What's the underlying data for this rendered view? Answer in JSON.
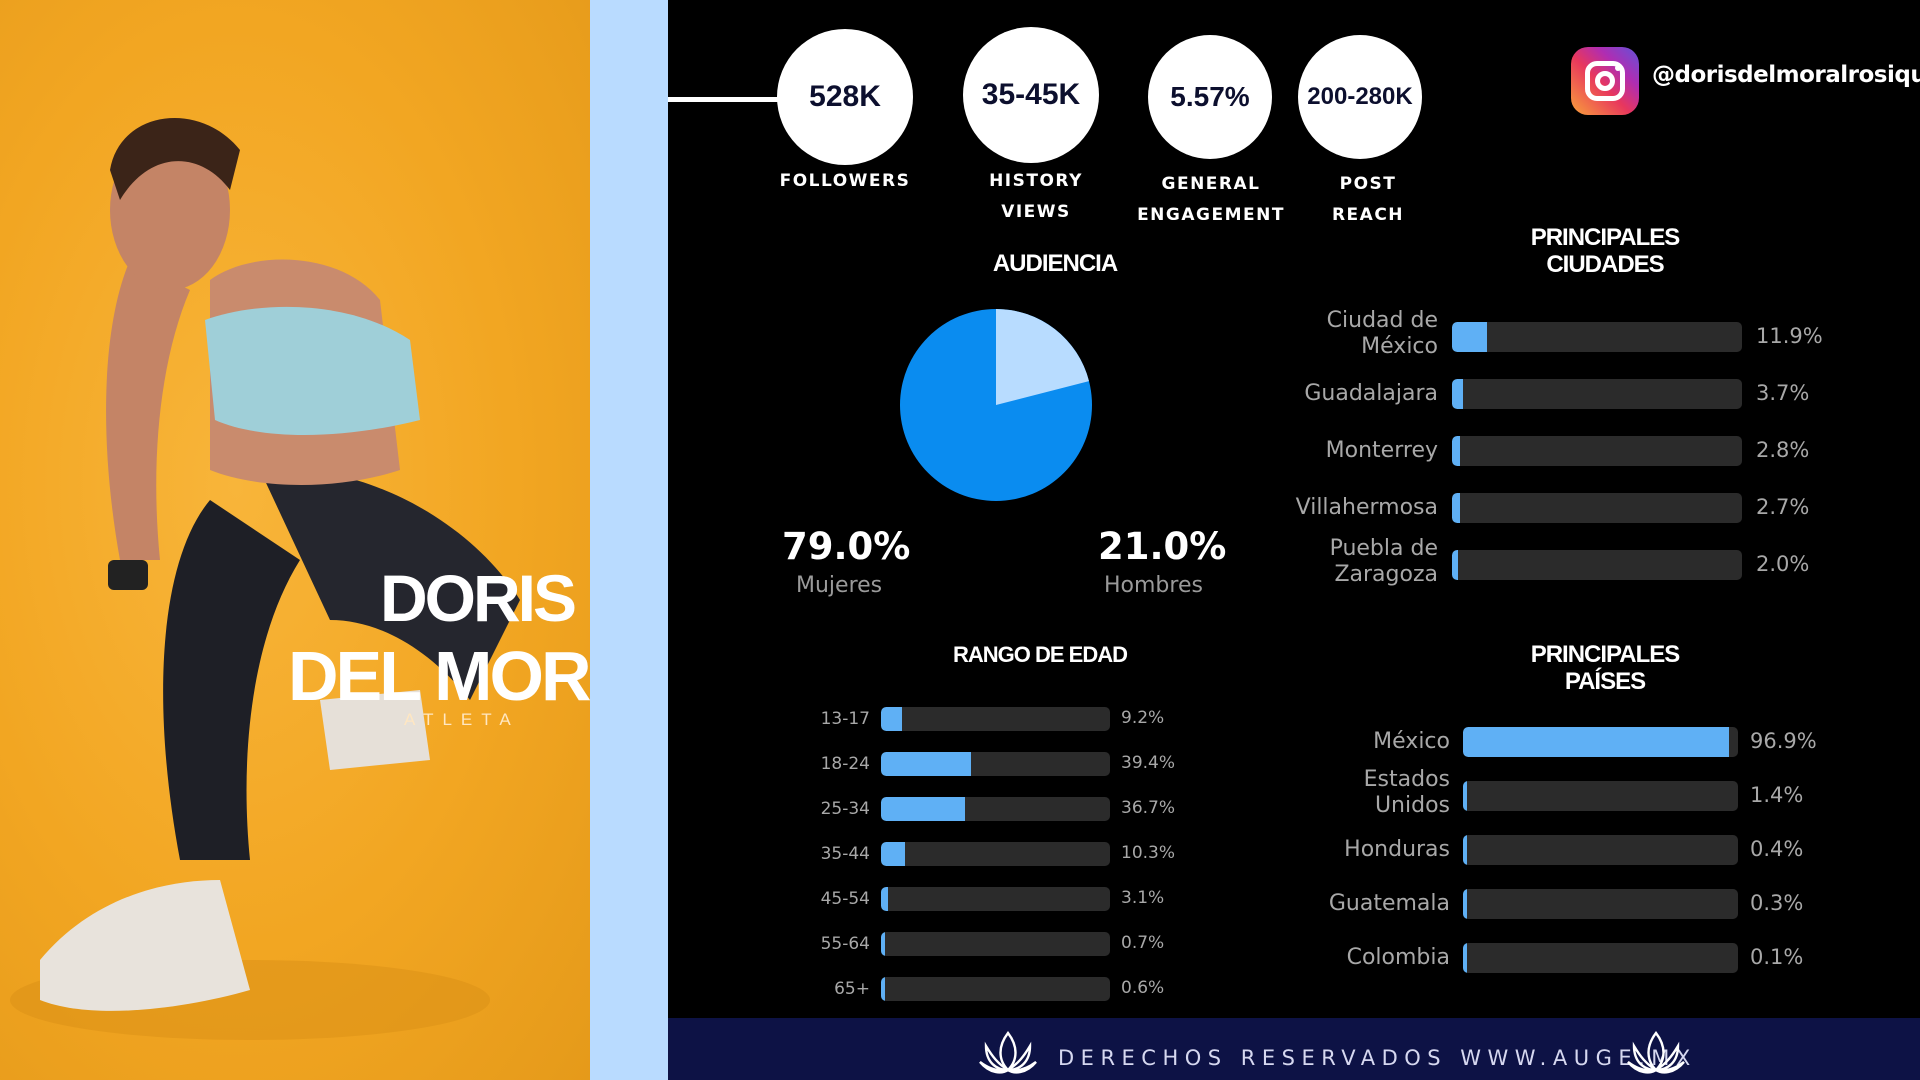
{
  "profile": {
    "name_first": "DORIS",
    "name_last": "DEL MORAL",
    "role": "ATLETA",
    "instagram_handle": "@dorisdelmoralrosique"
  },
  "kpis": [
    {
      "value": "528K",
      "label": "FOLLOWERS"
    },
    {
      "value": "35-45K",
      "label": "HISTORY\nVIEWS"
    },
    {
      "value": "5.57%",
      "label": "GENERAL\nENGAGEMENT"
    },
    {
      "value": "200-280K",
      "label": "POST\nREACH"
    }
  ],
  "audience": {
    "title": "AUDIENCIA",
    "women_pct": "79.0%",
    "women_label": "Mujeres",
    "men_pct": "21.0%",
    "men_label": "Hombres"
  },
  "age": {
    "title": "RANGO DE EDAD",
    "rows": [
      {
        "label": "13-17",
        "value": "9.2%",
        "pct": 9.2
      },
      {
        "label": "18-24",
        "value": "39.4%",
        "pct": 39.4
      },
      {
        "label": "25-34",
        "value": "36.7%",
        "pct": 36.7
      },
      {
        "label": "35-44",
        "value": "10.3%",
        "pct": 10.3
      },
      {
        "label": "45-54",
        "value": "3.1%",
        "pct": 3.1
      },
      {
        "label": "55-64",
        "value": "0.7%",
        "pct": 0.7
      },
      {
        "label": "65+",
        "value": "0.6%",
        "pct": 0.6
      }
    ]
  },
  "cities": {
    "title": "PRINCIPALES\nCIUDADES",
    "rows": [
      {
        "label": "Ciudad de\nMéxico",
        "value": "11.9%",
        "pct": 11.9
      },
      {
        "label": "Guadalajara",
        "value": "3.7%",
        "pct": 3.7
      },
      {
        "label": "Monterrey",
        "value": "2.8%",
        "pct": 2.8
      },
      {
        "label": "Villahermosa",
        "value": "2.7%",
        "pct": 2.7
      },
      {
        "label": "Puebla de\nZaragoza",
        "value": "2.0%",
        "pct": 2.0
      }
    ]
  },
  "countries": {
    "title": "PRINCIPALES\nPAÍSES",
    "rows": [
      {
        "label": "México",
        "value": "96.9%",
        "pct": 96.9
      },
      {
        "label": "Estados\nUnidos",
        "value": "1.4%",
        "pct": 1.4
      },
      {
        "label": "Honduras",
        "value": "0.4%",
        "pct": 0.4
      },
      {
        "label": "Guatemala",
        "value": "0.3%",
        "pct": 0.3
      },
      {
        "label": "Colombia",
        "value": "0.1%",
        "pct": 0.1
      }
    ]
  },
  "footer": {
    "text": "DERECHOS RESERVADOS WWW.AUGE.MX"
  },
  "colors": {
    "bar_fill": "#5fb0f5",
    "pie_main": "#0a8cf0",
    "pie_light": "#b8dcff",
    "footer_bg": "#0d1245"
  }
}
